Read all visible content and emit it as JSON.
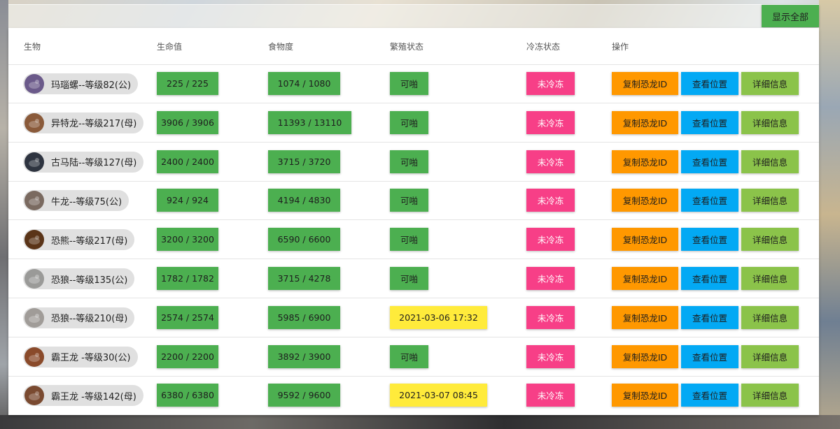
{
  "toolbar": {
    "show_all_label": "显示全部"
  },
  "table": {
    "headers": {
      "creature": "生物",
      "health": "生命值",
      "food": "食物度",
      "breeding": "繁殖状态",
      "frozen": "冷冻状态",
      "actions": "操作"
    },
    "action_labels": {
      "copy_id": "复制恐龙ID",
      "view_location": "查看位置",
      "details": "详细信息"
    },
    "rows": [
      {
        "creature": "玛瑙螺--等级82(公)",
        "avatar_icon": "snail-icon",
        "avatar_color": "#6b5a8a",
        "health": "225 / 225",
        "food": "1074 / 1080",
        "breeding": "可啪",
        "breeding_state": "ready",
        "frozen": "未冷冻"
      },
      {
        "creature": "异特龙--等级217(母)",
        "avatar_icon": "allosaurus-icon",
        "avatar_color": "#8a5a3a",
        "health": "3906 / 3906",
        "food": "11393 / 13110",
        "breeding": "可啪",
        "breeding_state": "ready",
        "frozen": "未冷冻"
      },
      {
        "creature": "古马陆--等级127(母)",
        "avatar_icon": "arthropleura-icon",
        "avatar_color": "#2e3440",
        "health": "2400 / 2400",
        "food": "3715 / 3720",
        "breeding": "可啪",
        "breeding_state": "ready",
        "frozen": "未冷冻"
      },
      {
        "creature": "牛龙--等级75(公)",
        "avatar_icon": "carnotaurus-icon",
        "avatar_color": "#7a6a60",
        "health": "924 / 924",
        "food": "4194 / 4830",
        "breeding": "可啪",
        "breeding_state": "ready",
        "frozen": "未冷冻"
      },
      {
        "creature": "恐熊--等级217(母)",
        "avatar_icon": "bear-icon",
        "avatar_color": "#5a3418",
        "health": "3200 / 3200",
        "food": "6590 / 6600",
        "breeding": "可啪",
        "breeding_state": "ready",
        "frozen": "未冷冻"
      },
      {
        "creature": "恐狼--等级135(公)",
        "avatar_icon": "wolf-icon",
        "avatar_color": "#9a9a98",
        "health": "1782 / 1782",
        "food": "3715 / 4278",
        "breeding": "可啪",
        "breeding_state": "ready",
        "frozen": "未冷冻"
      },
      {
        "creature": "恐狼--等级210(母)",
        "avatar_icon": "wolf-icon",
        "avatar_color": "#a09c98",
        "health": "2574 / 2574",
        "food": "5985 / 6900",
        "breeding": "2021-03-06 17:32",
        "breeding_state": "cooldown",
        "frozen": "未冷冻"
      },
      {
        "creature": "霸王龙 -等级30(公)",
        "avatar_icon": "trex-icon",
        "avatar_color": "#8a4a2a",
        "health": "2200 / 2200",
        "food": "3892 / 3900",
        "breeding": "可啪",
        "breeding_state": "ready",
        "frozen": "未冷冻"
      },
      {
        "creature": "霸王龙 -等级142(母)",
        "avatar_icon": "trex-icon",
        "avatar_color": "#7a4a30",
        "health": "6380 / 6380",
        "food": "9592 / 9600",
        "breeding": "2021-03-07 08:45",
        "breeding_state": "cooldown",
        "frozen": "未冷冻"
      }
    ]
  },
  "colors": {
    "green": "#4caf50",
    "yellow": "#ffeb3b",
    "pink": "#f73f87",
    "orange": "#ff9800",
    "blue": "#03a9f4",
    "light_green": "#8bc34a"
  }
}
